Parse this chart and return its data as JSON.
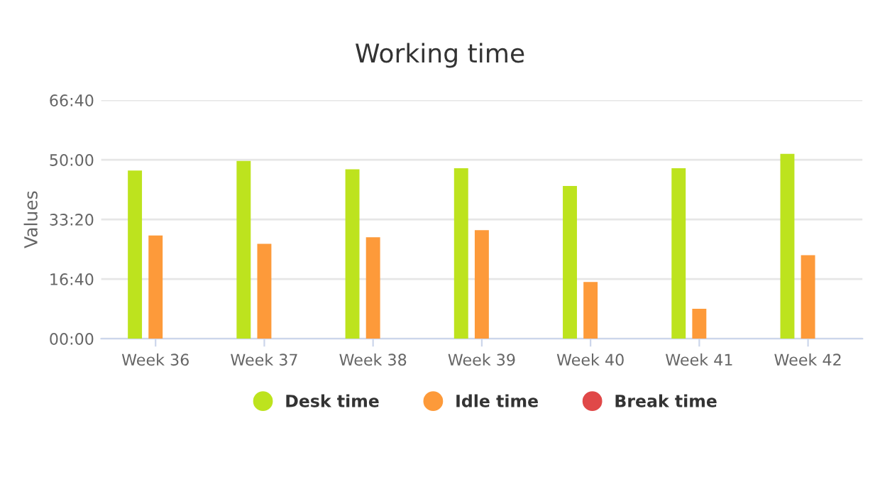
{
  "chart_data": {
    "type": "bar",
    "title": "Working time",
    "ylabel": "Values",
    "categories": [
      "Week 36",
      "Week 37",
      "Week 38",
      "Week 39",
      "Week 40",
      "Week 41",
      "Week 42"
    ],
    "series": [
      {
        "name": "Desk time",
        "color": "#bde31e",
        "values": [
          2820,
          2980,
          2840,
          2860,
          2560,
          2860,
          3100
        ]
      },
      {
        "name": "Idle time",
        "color": "#fd9a3a",
        "values": [
          1730,
          1590,
          1700,
          1820,
          950,
          500,
          1400
        ]
      },
      {
        "name": "Break time",
        "color": "#e04848",
        "values": [
          0,
          0,
          0,
          0,
          0,
          0,
          0
        ]
      }
    ],
    "ylim": [
      0,
      4000
    ],
    "yticks": [
      {
        "value": 0,
        "label": "00:00"
      },
      {
        "value": 1000,
        "label": "16:40"
      },
      {
        "value": 2000,
        "label": "33:20"
      },
      {
        "value": 3000,
        "label": "50:00"
      },
      {
        "value": 4000,
        "label": "66:40"
      }
    ],
    "grid": "y",
    "legend": "bottom"
  }
}
